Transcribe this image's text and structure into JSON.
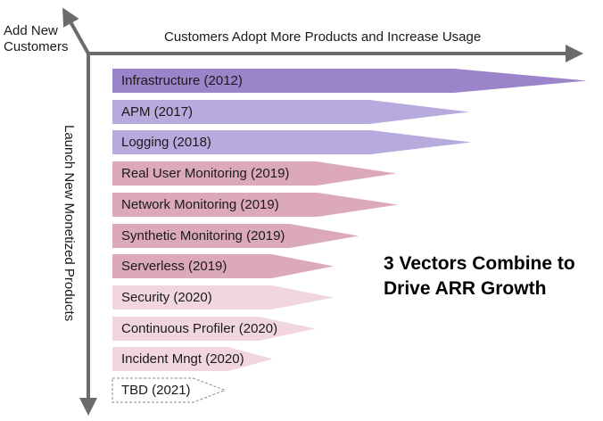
{
  "axes": {
    "y_label": "Add New\nCustomers",
    "x_label": "Customers Adopt More Products and Increase Usage",
    "vertical_label": "Launch New Monetized Products",
    "color": "#6b6b6b"
  },
  "headline": "3 Vectors Combine to\nDrive ARR Growth",
  "products": [
    {
      "label": "Infrastructure (2012)",
      "length": 532,
      "color": "#9b84c9",
      "style": "solid"
    },
    {
      "label": "APM (2017)",
      "length": 400,
      "color": "#b7aadd",
      "style": "solid"
    },
    {
      "label": "Logging (2018)",
      "length": 402,
      "color": "#b7aadd",
      "style": "solid"
    },
    {
      "label": "Real User Monitoring (2019)",
      "length": 318,
      "color": "#dca9bb",
      "style": "solid"
    },
    {
      "label": "Network Monitoring (2019)",
      "length": 320,
      "color": "#dca9bb",
      "style": "solid"
    },
    {
      "label": "Synthetic Monitoring (2019)",
      "length": 276,
      "color": "#dca9bb",
      "style": "solid"
    },
    {
      "label": "Serverless (2019)",
      "length": 248,
      "color": "#dca9bb",
      "style": "solid"
    },
    {
      "label": "Security (2020)",
      "length": 248,
      "color": "#f1d6df",
      "style": "solid"
    },
    {
      "label": "Continuous Profiler (2020)",
      "length": 228,
      "color": "#f1d6df",
      "style": "solid"
    },
    {
      "label": "Incident Mngt (2020)",
      "length": 180,
      "color": "#f1d6df",
      "style": "solid"
    },
    {
      "label": "TBD (2021)",
      "length": 126,
      "color": "#ffffff",
      "style": "dashed"
    }
  ]
}
